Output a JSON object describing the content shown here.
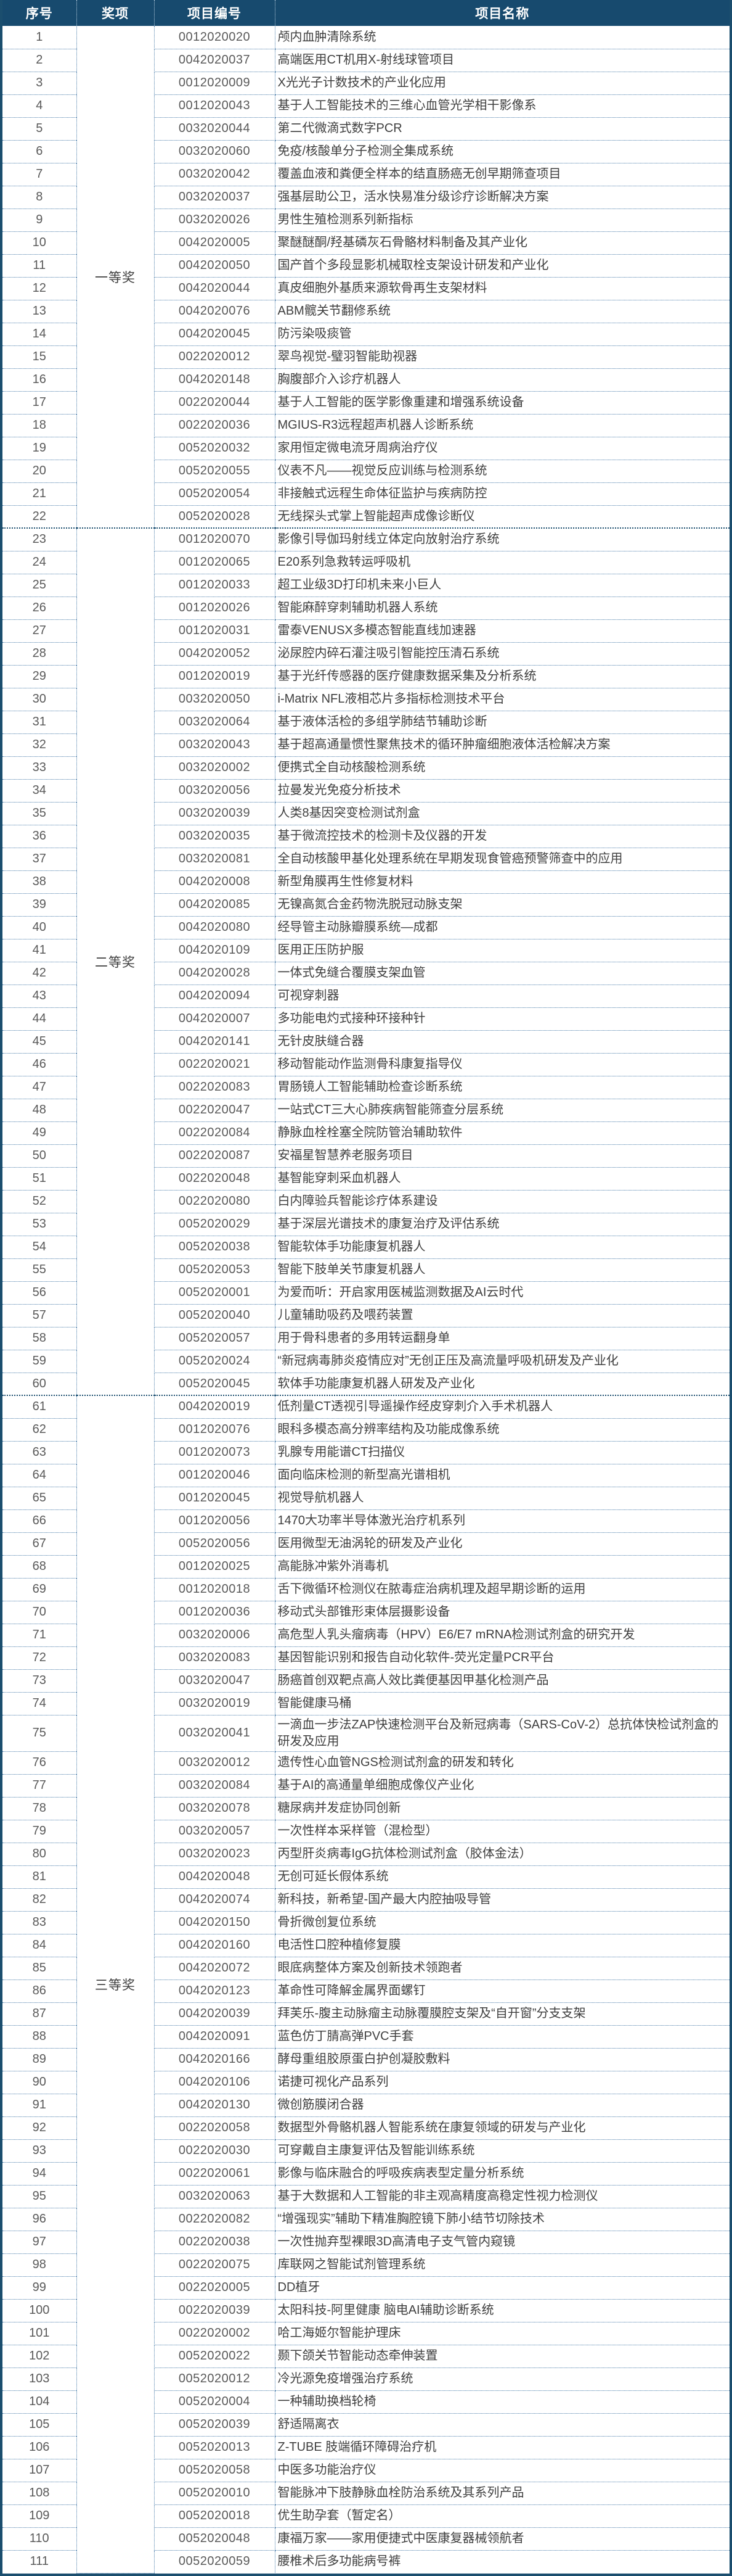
{
  "columns": [
    "序号",
    "奖项",
    "项目编号",
    "项目名称"
  ],
  "colors": {
    "header_bg": "#174a6e",
    "header_text": "#ffffff",
    "outer_border": "#1b4e6e",
    "row_divider": "#4a7ca9",
    "section_divider": "#1b4e6e",
    "index_text": "#595959",
    "code_text": "#595959",
    "name_text": "#3f3f3f"
  },
  "awards": [
    {
      "label": "一等奖",
      "rows": [
        {
          "no": "1",
          "code": "0012020020",
          "name": "颅内血肿清除系统"
        },
        {
          "no": "2",
          "code": "0042020037",
          "name": "高端医用CT机用X-射线球管项目"
        },
        {
          "no": "3",
          "code": "0012020009",
          "name": "X光光子计数技术的产业化应用"
        },
        {
          "no": "4",
          "code": "0012020043",
          "name": "基于人工智能技术的三维心血管光学相干影像系"
        },
        {
          "no": "5",
          "code": "0032020044",
          "name": "第二代微滴式数字PCR"
        },
        {
          "no": "6",
          "code": "0032020060",
          "name": "免疫/核酸单分子检测全集成系统"
        },
        {
          "no": "7",
          "code": "0032020042",
          "name": "覆盖血液和粪便全样本的结直肠癌无创早期筛查项目"
        },
        {
          "no": "8",
          "code": "0032020037",
          "name": "强基层助公卫，活水快易准分级诊疗诊断解决方案"
        },
        {
          "no": "9",
          "code": "0032020026",
          "name": "男性生殖检测系列新指标"
        },
        {
          "no": "10",
          "code": "0042020005",
          "name": "聚醚醚酮/羟基磷灰石骨骼材料制备及其产业化"
        },
        {
          "no": "11",
          "code": "0042020050",
          "name": "国产首个多段显影机械取栓支架设计研发和产业化"
        },
        {
          "no": "12",
          "code": "0042020044",
          "name": "真皮细胞外基质来源软骨再生支架材料"
        },
        {
          "no": "13",
          "code": "0042020076",
          "name": "ABM髋关节翻修系统"
        },
        {
          "no": "14",
          "code": "0042020045",
          "name": "防污染吸痰管"
        },
        {
          "no": "15",
          "code": "0022020012",
          "name": "翠鸟视觉-璧羽智能助视器"
        },
        {
          "no": "16",
          "code": "0042020148",
          "name": "胸腹部介入诊疗机器人"
        },
        {
          "no": "17",
          "code": "0022020044",
          "name": "基于人工智能的医学影像重建和增强系统设备"
        },
        {
          "no": "18",
          "code": "0022020036",
          "name": "MGIUS-R3远程超声机器人诊断系统"
        },
        {
          "no": "19",
          "code": "0052020032",
          "name": "家用恒定微电流牙周病治疗仪"
        },
        {
          "no": "20",
          "code": "0052020055",
          "name": "仪表不凡——视觉反应训练与检测系统"
        },
        {
          "no": "21",
          "code": "0052020054",
          "name": "非接触式远程生命体征监护与疾病防控"
        },
        {
          "no": "22",
          "code": "0052020028",
          "name": "无线探头式掌上智能超声成像诊断仪"
        }
      ]
    },
    {
      "label": "二等奖",
      "rows": [
        {
          "no": "23",
          "code": "0012020070",
          "name": "影像引导伽玛射线立体定向放射治疗系统"
        },
        {
          "no": "24",
          "code": "0012020065",
          "name": "E20系列急救转运呼吸机"
        },
        {
          "no": "25",
          "code": "0012020033",
          "name": "超工业级3D打印机未来小巨人"
        },
        {
          "no": "26",
          "code": "0012020026",
          "name": "智能麻醉穿刺辅助机器人系统"
        },
        {
          "no": "27",
          "code": "0012020031",
          "name": "雷泰VENUSX多模态智能直线加速器"
        },
        {
          "no": "28",
          "code": "0042020052",
          "name": "泌尿腔内碎石灌注吸引智能控压清石系统"
        },
        {
          "no": "29",
          "code": "0012020019",
          "name": "基于光纤传感器的医疗健康数据采集及分析系统"
        },
        {
          "no": "30",
          "code": "0032020050",
          "name": "i-Matrix NFL液相芯片多指标检测技术平台"
        },
        {
          "no": "31",
          "code": "0032020064",
          "name": "基于液体活检的多组学肺结节辅助诊断"
        },
        {
          "no": "32",
          "code": "0032020043",
          "name": "基于超高通量惯性聚焦技术的循环肿瘤细胞液体活检解决方案"
        },
        {
          "no": "33",
          "code": "0032020002",
          "name": "便携式全自动核酸检测系统"
        },
        {
          "no": "34",
          "code": "0032020056",
          "name": "拉曼发光免疫分析技术"
        },
        {
          "no": "35",
          "code": "0032020039",
          "name": "人类8基因突变检测试剂盒"
        },
        {
          "no": "36",
          "code": "0032020035",
          "name": "基于微流控技术的检测卡及仪器的开发"
        },
        {
          "no": "37",
          "code": "0032020081",
          "name": "全自动核酸甲基化处理系统在早期发现食管癌预警筛查中的应用"
        },
        {
          "no": "38",
          "code": "0042020008",
          "name": "新型角膜再生性修复材料"
        },
        {
          "no": "39",
          "code": "0042020085",
          "name": "无镍高氮合金药物洗脱冠动脉支架"
        },
        {
          "no": "40",
          "code": "0042020080",
          "name": "经导管主动脉瓣膜系统—成都"
        },
        {
          "no": "41",
          "code": "0042020109",
          "name": "医用正压防护服"
        },
        {
          "no": "42",
          "code": "0042020028",
          "name": "一体式免缝合覆膜支架血管"
        },
        {
          "no": "43",
          "code": "0042020094",
          "name": "可视穿刺器"
        },
        {
          "no": "44",
          "code": "0042020007",
          "name": "多功能电灼式接种环接种针"
        },
        {
          "no": "45",
          "code": "0042020141",
          "name": "无针皮肤缝合器"
        },
        {
          "no": "46",
          "code": "0022020021",
          "name": "移动智能动作监测骨科康复指导仪"
        },
        {
          "no": "47",
          "code": "0022020083",
          "name": "胃肠镜人工智能辅助检查诊断系统"
        },
        {
          "no": "48",
          "code": "0022020047",
          "name": "一站式CT三大心肺疾病智能筛查分层系统"
        },
        {
          "no": "49",
          "code": "0022020084",
          "name": "静脉血栓栓塞全院防管治辅助软件"
        },
        {
          "no": "50",
          "code": "0022020087",
          "name": "安福星智慧养老服务项目"
        },
        {
          "no": "51",
          "code": "0022020048",
          "name": "基智能穿刺采血机器人"
        },
        {
          "no": "52",
          "code": "0022020080",
          "name": "白内障验兵智能诊疗体系建设"
        },
        {
          "no": "53",
          "code": "0052020029",
          "name": "基于深层光谱技术的康复治疗及评估系统"
        },
        {
          "no": "54",
          "code": "0052020038",
          "name": "智能软体手功能康复机器人"
        },
        {
          "no": "55",
          "code": "0052020053",
          "name": "智能下肢单关节康复机器人"
        },
        {
          "no": "56",
          "code": "0052020001",
          "name": "为爱而听：开启家用医械监测数据及AI云时代"
        },
        {
          "no": "57",
          "code": "0052020040",
          "name": "儿童辅助吸药及喂药装置"
        },
        {
          "no": "58",
          "code": "0052020057",
          "name": "用于骨科患者的多用转运翻身单"
        },
        {
          "no": "59",
          "code": "0052020024",
          "name": "“新冠病毒肺炎疫情应对”无创正压及高流量呼吸机研发及产业化"
        },
        {
          "no": "60",
          "code": "0052020045",
          "name": "软体手功能康复机器人研发及产业化"
        }
      ]
    },
    {
      "label": "三等奖",
      "rows": [
        {
          "no": "61",
          "code": "0042020019",
          "name": "低剂量CT透视引导遥操作经皮穿刺介入手术机器人"
        },
        {
          "no": "62",
          "code": "0012020076",
          "name": "眼科多模态高分辨率结构及功能成像系统"
        },
        {
          "no": "63",
          "code": "0012020073",
          "name": "乳腺专用能谱CT扫描仪"
        },
        {
          "no": "64",
          "code": "0012020046",
          "name": "面向临床检测的新型高光谱相机"
        },
        {
          "no": "65",
          "code": "0012020045",
          "name": "视觉导航机器人"
        },
        {
          "no": "66",
          "code": "0012020056",
          "name": "1470大功率半导体激光治疗机系列"
        },
        {
          "no": "67",
          "code": "0052020056",
          "name": "医用微型无油涡轮的研发及产业化"
        },
        {
          "no": "68",
          "code": "0012020025",
          "name": "高能脉冲紫外消毒机"
        },
        {
          "no": "69",
          "code": "0012020018",
          "name": "舌下微循环检测仪在脓毒症治病机理及超早期诊断的运用"
        },
        {
          "no": "70",
          "code": "0012020036",
          "name": "移动式头部锥形束体层摄影设备"
        },
        {
          "no": "71",
          "code": "0032020006",
          "name": "高危型人乳头瘤病毒（HPV）E6/E7 mRNA检测试剂盒的研究开发"
        },
        {
          "no": "72",
          "code": "0032020083",
          "name": "基因智能识别和报告自动化软件-荧光定量PCR平台"
        },
        {
          "no": "73",
          "code": "0032020047",
          "name": "肠癌首创双靶点高人效比粪便基因甲基化检测产品"
        },
        {
          "no": "74",
          "code": "0032020019",
          "name": "智能健康马桶"
        },
        {
          "no": "75",
          "code": "0032020041",
          "name": "一滴血一步法ZAP快速检测平台及新冠病毒（SARS-CoV-2）总抗体快检试剂盒的研发及应用"
        },
        {
          "no": "76",
          "code": "0032020012",
          "name": "遗传性心血管NGS检测试剂盒的研发和转化"
        },
        {
          "no": "77",
          "code": "0032020084",
          "name": "基于AI的高通量单细胞成像仪产业化"
        },
        {
          "no": "78",
          "code": "0032020078",
          "name": "糖尿病并发症协同创新"
        },
        {
          "no": "79",
          "code": "0032020057",
          "name": "一次性样本采样管（混检型）"
        },
        {
          "no": "80",
          "code": "0032020023",
          "name": "丙型肝炎病毒IgG抗体检测试剂盒（胶体金法）"
        },
        {
          "no": "81",
          "code": "0042020048",
          "name": "无创可延长假体系统"
        },
        {
          "no": "82",
          "code": "0042020074",
          "name": "新科技，新希望-国产最大内腔抽吸导管"
        },
        {
          "no": "83",
          "code": "0042020150",
          "name": "骨折微创复位系统"
        },
        {
          "no": "84",
          "code": "0042020160",
          "name": "电活性口腔种植修复膜"
        },
        {
          "no": "85",
          "code": "0042020072",
          "name": "眼底病整体方案及创新技术领跑者"
        },
        {
          "no": "86",
          "code": "0042020123",
          "name": "革命性可降解金属界面螺钉"
        },
        {
          "no": "87",
          "code": "0042020039",
          "name": "拜芙乐-腹主动脉瘤主动脉覆膜腔支架及“自开窗”分支支架"
        },
        {
          "no": "88",
          "code": "0042020091",
          "name": "蓝色仿丁腈高弹PVC手套"
        },
        {
          "no": "89",
          "code": "0042020166",
          "name": "酵母重组胶原蛋白护创凝胶敷料"
        },
        {
          "no": "90",
          "code": "0042020106",
          "name": "诺捷可视化产品系列"
        },
        {
          "no": "91",
          "code": "0042020130",
          "name": "微创筋膜闭合器"
        },
        {
          "no": "92",
          "code": "0022020058",
          "name": "数据型外骨骼机器人智能系统在康复领域的研发与产业化"
        },
        {
          "no": "93",
          "code": "0022020030",
          "name": "可穿戴自主康复评估及智能训练系统"
        },
        {
          "no": "94",
          "code": "0022020061",
          "name": "影像与临床融合的呼吸疾病表型定量分析系统"
        },
        {
          "no": "95",
          "code": "0032020063",
          "name": "基于大数据和人工智能的非主观高精度高稳定性视力检测仪"
        },
        {
          "no": "96",
          "code": "0022020082",
          "name": "“增强现实”辅助下精准胸腔镜下肺小结节切除技术"
        },
        {
          "no": "97",
          "code": "0022020038",
          "name": "一次性抛弃型裸眼3D高清电子支气管内窥镜"
        },
        {
          "no": "98",
          "code": "0022020075",
          "name": "库联网之智能试剂管理系统"
        },
        {
          "no": "99",
          "code": "0022020005",
          "name": "DD植牙"
        },
        {
          "no": "100",
          "code": "0022020039",
          "name": "太阳科技-阿里健康 脑电AI辅助诊断系统"
        },
        {
          "no": "101",
          "code": "0022020002",
          "name": "哈工海姬尔智能护理床"
        },
        {
          "no": "102",
          "code": "0052020022",
          "name": "颞下颌关节智能动态牵伸装置"
        },
        {
          "no": "103",
          "code": "0052020012",
          "name": "冷光源免疫增强治疗系统"
        },
        {
          "no": "104",
          "code": "0052020004",
          "name": "一种辅助换档轮椅"
        },
        {
          "no": "105",
          "code": "0052020039",
          "name": "舒适隔离衣"
        },
        {
          "no": "106",
          "code": "0052020013",
          "name": "Z-TUBE 肢端循环障碍治疗机"
        },
        {
          "no": "107",
          "code": "0052020058",
          "name": "中医多功能治疗仪"
        },
        {
          "no": "108",
          "code": "0052020010",
          "name": "智能脉冲下肢静脉血栓防治系统及其系列产品"
        },
        {
          "no": "109",
          "code": "0052020018",
          "name": "优生助孕套（暂定名）"
        },
        {
          "no": "110",
          "code": "0052020048",
          "name": "康福万家——家用便捷式中医康复器械领航者"
        },
        {
          "no": "111",
          "code": "0052020059",
          "name": "腰椎术后多功能病号裤"
        }
      ]
    }
  ]
}
